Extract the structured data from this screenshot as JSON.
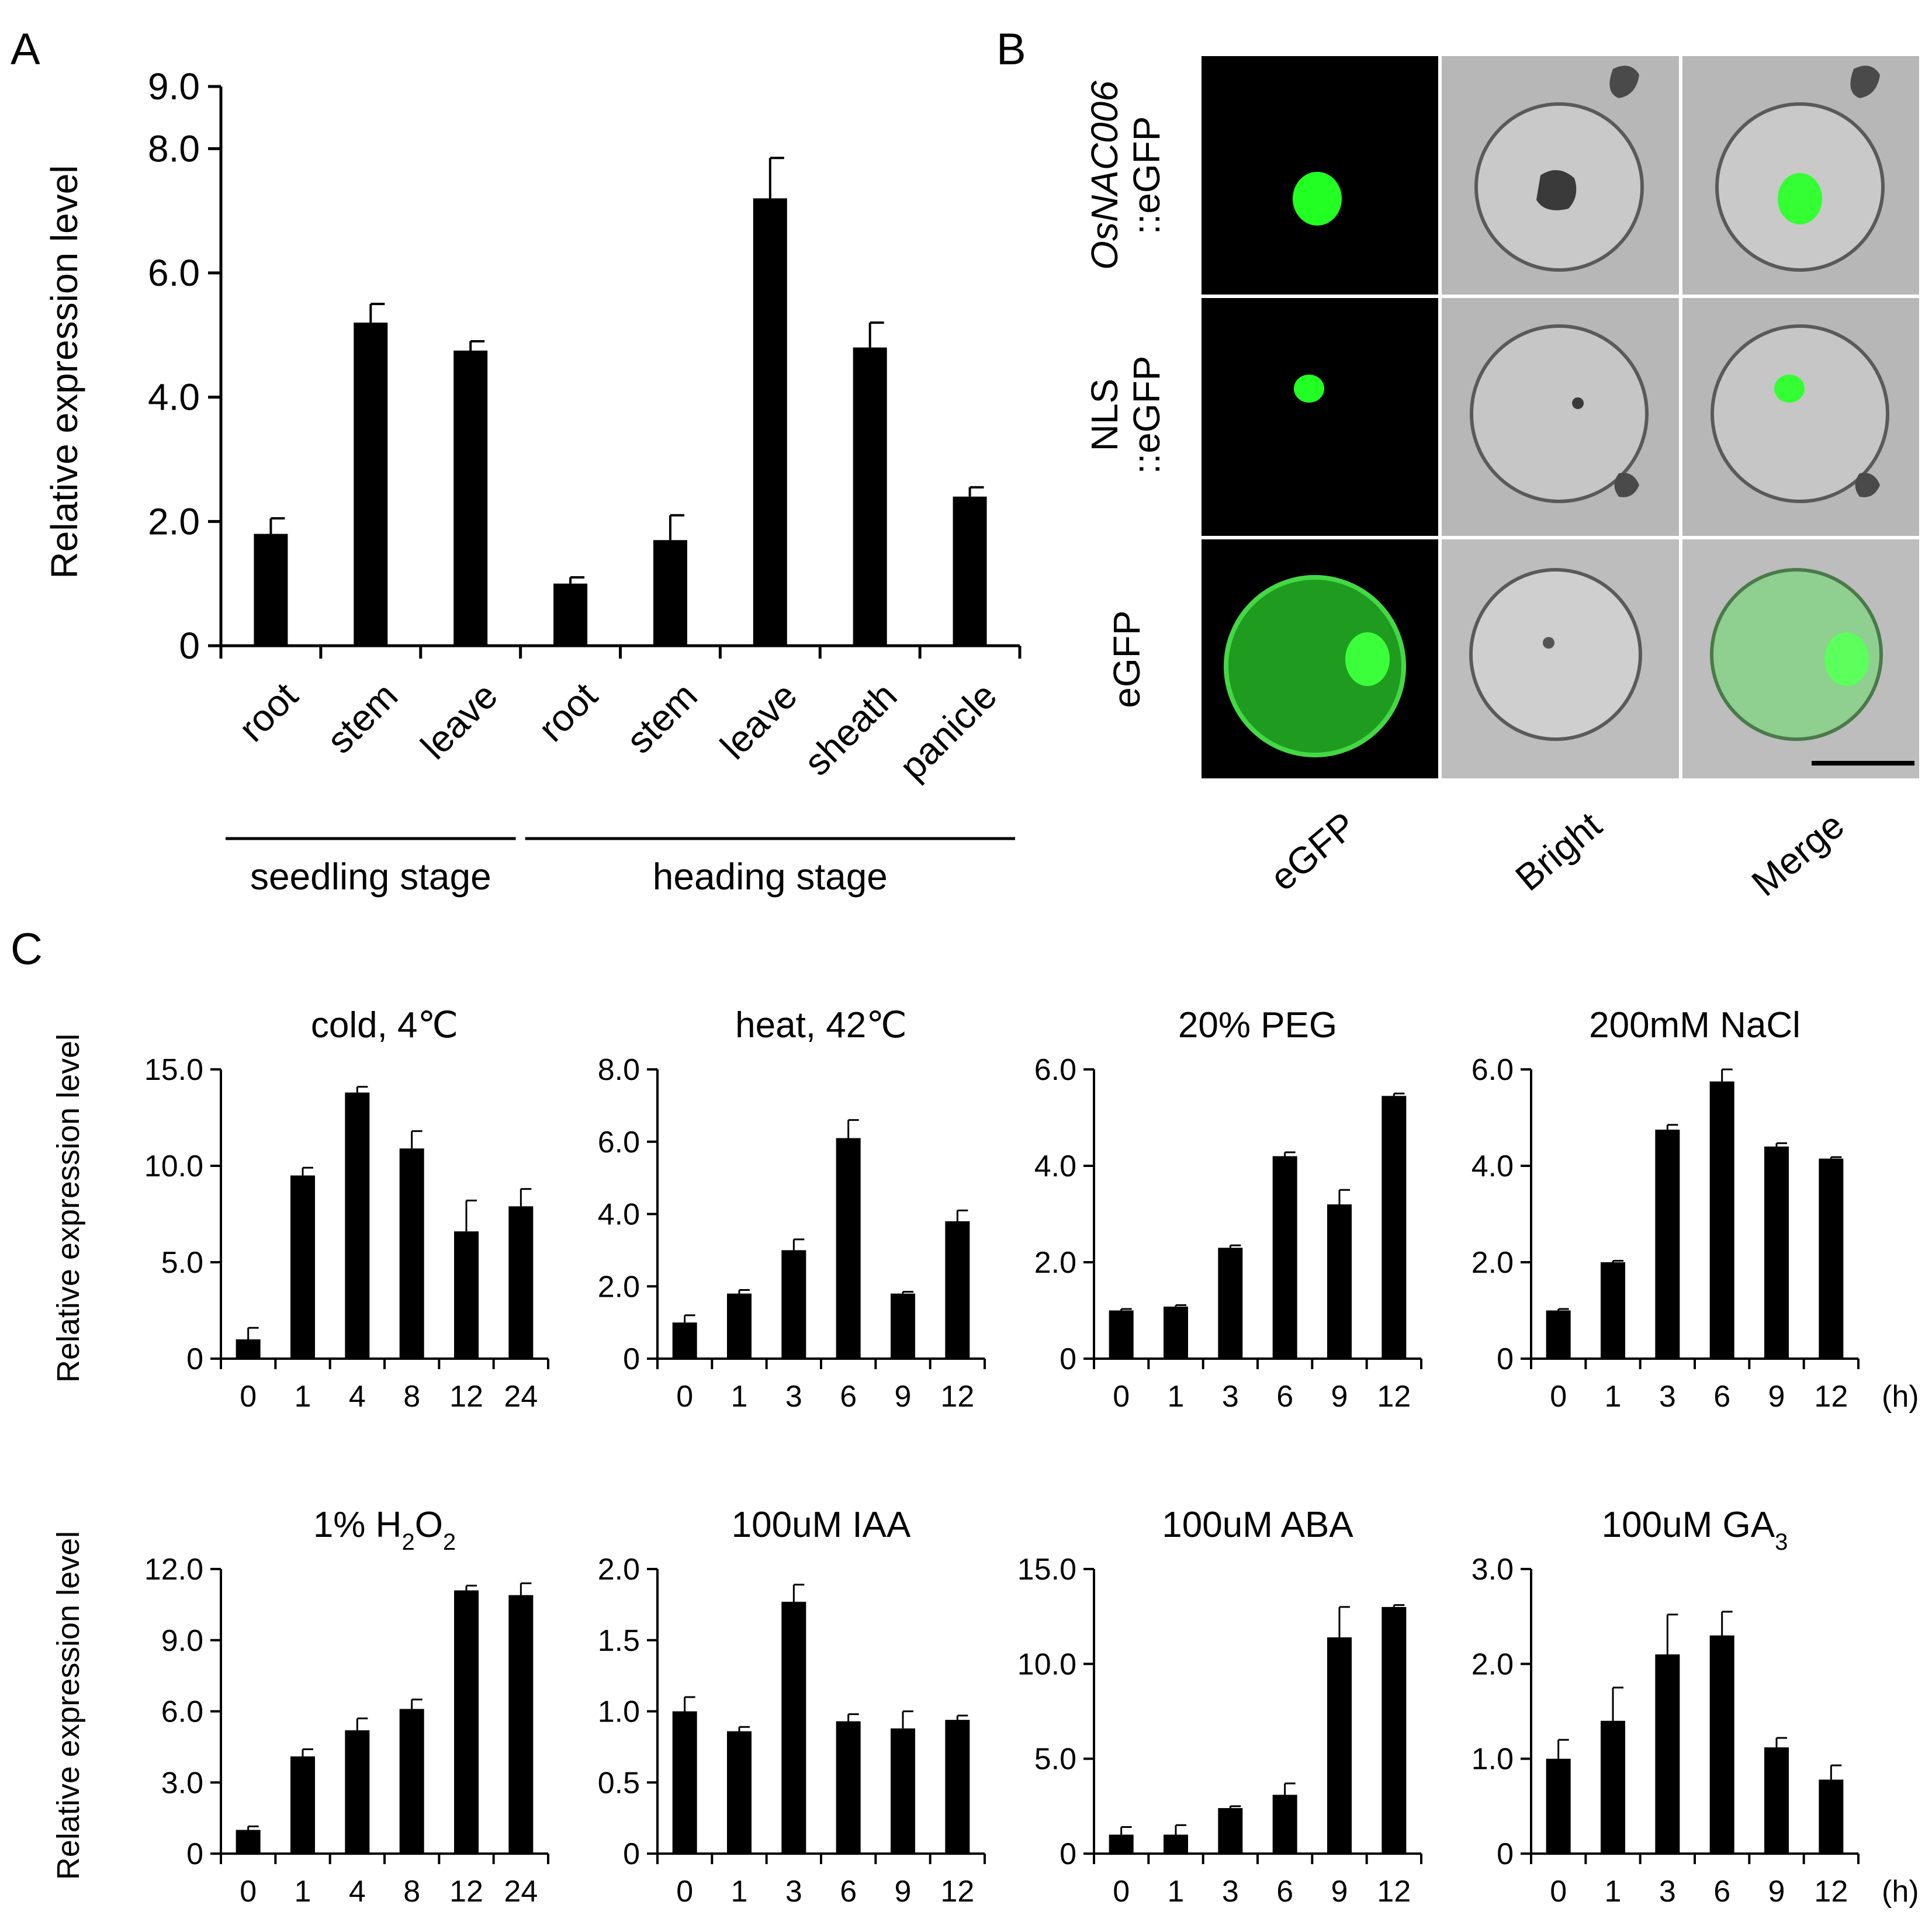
{
  "panels": {
    "A": {
      "letter": "A"
    },
    "B": {
      "letter": "B"
    },
    "C": {
      "letter": "C"
    }
  },
  "panel_b": {
    "row_labels": [
      {
        "line1": "OsNAC006",
        "line2": "::eGFP",
        "italic_line1": true
      },
      {
        "line1": "NLS",
        "line2": "::eGFP",
        "italic_line1": false
      },
      {
        "line1": "eGFP",
        "line2": "",
        "italic_line1": false
      }
    ],
    "column_labels": [
      "eGFP",
      "Bright",
      "Merge"
    ],
    "colors": {
      "background_fluor": "#000000",
      "gfp": "#2bff2b",
      "bright_bg": "#b8b8b8",
      "grid": "#ffffff"
    }
  },
  "chart_data": [
    {
      "id": "A",
      "type": "bar",
      "categories": [
        "root",
        "stem",
        "leave",
        "root",
        "stem",
        "leave",
        "sheath",
        "panicle"
      ],
      "values": [
        1.8,
        5.2,
        4.75,
        1.0,
        1.7,
        7.2,
        4.8,
        2.4
      ],
      "errors": [
        0.25,
        0.3,
        0.15,
        0.1,
        0.4,
        0.65,
        0.4,
        0.15
      ],
      "groups": [
        {
          "label": "seedling stage",
          "from": 0,
          "to": 2
        },
        {
          "label": "heading stage",
          "from": 3,
          "to": 7
        }
      ],
      "ylabel": "Relative expression level",
      "yticks": [
        "0",
        "2.0",
        "4.0",
        "6.0",
        "8.0",
        "9.0"
      ],
      "ytick_values": [
        0,
        2,
        4,
        6,
        8,
        9
      ],
      "ylim": [
        0,
        9
      ],
      "bar_color": "#000000"
    },
    {
      "id": "C1",
      "type": "bar",
      "title": "cold, 4℃",
      "title_sub": "",
      "title_after": "",
      "categories": [
        "0",
        "1",
        "4",
        "8",
        "12",
        "24"
      ],
      "values": [
        1.0,
        9.5,
        13.8,
        10.9,
        6.6,
        7.9
      ],
      "errors": [
        0.6,
        0.4,
        0.3,
        0.9,
        1.6,
        0.9
      ],
      "yticks": [
        "0",
        "5.0",
        "10.0",
        "15.0"
      ],
      "ytick_values": [
        0,
        5,
        10,
        15
      ],
      "ylim": [
        0,
        15
      ],
      "ylabel": "Relative expression level",
      "unit": ""
    },
    {
      "id": "C2",
      "type": "bar",
      "title": "heat, 42℃",
      "title_sub": "",
      "title_after": "",
      "categories": [
        "0",
        "1",
        "3",
        "6",
        "9",
        "12"
      ],
      "values": [
        1.0,
        1.8,
        3.0,
        6.1,
        1.8,
        3.8
      ],
      "errors": [
        0.2,
        0.1,
        0.3,
        0.5,
        0.05,
        0.3
      ],
      "yticks": [
        "0",
        "2.0",
        "4.0",
        "6.0",
        "8.0"
      ],
      "ytick_values": [
        0,
        2,
        4,
        6,
        8
      ],
      "ylim": [
        0,
        8
      ],
      "ylabel": "",
      "unit": ""
    },
    {
      "id": "C3",
      "type": "bar",
      "title": "20% PEG",
      "title_sub": "",
      "title_after": "",
      "categories": [
        "0",
        "1",
        "3",
        "6",
        "9",
        "12"
      ],
      "values": [
        1.0,
        1.08,
        2.3,
        4.2,
        3.2,
        5.45
      ],
      "errors": [
        0.03,
        0.03,
        0.05,
        0.08,
        0.3,
        0.05
      ],
      "yticks": [
        "0",
        "2.0",
        "4.0",
        "6.0"
      ],
      "ytick_values": [
        0,
        2,
        4,
        6
      ],
      "ylim": [
        0,
        6
      ],
      "ylabel": "",
      "unit": ""
    },
    {
      "id": "C4",
      "type": "bar",
      "title": "200mM NaCl",
      "title_sub": "",
      "title_after": "",
      "categories": [
        "0",
        "1",
        "3",
        "6",
        "9",
        "12"
      ],
      "values": [
        1.0,
        2.0,
        4.75,
        5.75,
        4.4,
        4.15
      ],
      "errors": [
        0.03,
        0.03,
        0.1,
        0.25,
        0.07,
        0.03
      ],
      "yticks": [
        "0",
        "2.0",
        "4.0",
        "6.0"
      ],
      "ytick_values": [
        0,
        2,
        4,
        6
      ],
      "ylim": [
        0,
        6
      ],
      "ylabel": "",
      "unit": "(h)"
    },
    {
      "id": "C5",
      "type": "bar",
      "title": "1% H",
      "title_sub": "2",
      "title_after": "O",
      "title_sub2": "2",
      "categories": [
        "0",
        "1",
        "4",
        "8",
        "12",
        "24"
      ],
      "values": [
        1.0,
        4.1,
        5.2,
        6.1,
        11.1,
        10.9
      ],
      "errors": [
        0.15,
        0.3,
        0.5,
        0.4,
        0.2,
        0.5
      ],
      "yticks": [
        "0",
        "3.0",
        "6.0",
        "9.0",
        "12.0"
      ],
      "ytick_values": [
        0,
        3,
        6,
        9,
        12
      ],
      "ylim": [
        0,
        12
      ],
      "ylabel": "Relative expression level",
      "unit": ""
    },
    {
      "id": "C6",
      "type": "bar",
      "title": "100uM IAA",
      "title_sub": "",
      "title_after": "",
      "categories": [
        "0",
        "1",
        "3",
        "6",
        "9",
        "12"
      ],
      "values": [
        1.0,
        0.86,
        1.77,
        0.93,
        0.88,
        0.94
      ],
      "errors": [
        0.1,
        0.03,
        0.12,
        0.05,
        0.12,
        0.03
      ],
      "yticks": [
        "0",
        "0.5",
        "1.0",
        "1.5",
        "2.0"
      ],
      "ytick_values": [
        0,
        0.5,
        1,
        1.5,
        2
      ],
      "ylim": [
        0,
        2
      ],
      "ylabel": "",
      "unit": ""
    },
    {
      "id": "C7",
      "type": "bar",
      "title": "100uM ABA",
      "title_sub": "",
      "title_after": "",
      "categories": [
        "0",
        "1",
        "3",
        "6",
        "9",
        "12"
      ],
      "values": [
        1.0,
        1.0,
        2.4,
        3.1,
        11.4,
        13.0
      ],
      "errors": [
        0.4,
        0.5,
        0.1,
        0.6,
        1.6,
        0.1
      ],
      "yticks": [
        "0",
        "5.0",
        "10.0",
        "15.0"
      ],
      "ytick_values": [
        0,
        5,
        10,
        15
      ],
      "ylim": [
        0,
        15
      ],
      "ylabel": "",
      "unit": ""
    },
    {
      "id": "C8",
      "type": "bar",
      "title": "100uM GA",
      "title_sub": "3",
      "title_after": "",
      "categories": [
        "0",
        "1",
        "3",
        "6",
        "9",
        "12"
      ],
      "values": [
        1.0,
        1.4,
        2.1,
        2.3,
        1.12,
        0.78
      ],
      "errors": [
        0.2,
        0.35,
        0.42,
        0.25,
        0.1,
        0.15
      ],
      "yticks": [
        "0",
        "1.0",
        "2.0",
        "3.0"
      ],
      "ytick_values": [
        0,
        1,
        2,
        3
      ],
      "ylim": [
        0,
        3
      ],
      "ylabel": "",
      "unit": "(h)"
    }
  ]
}
